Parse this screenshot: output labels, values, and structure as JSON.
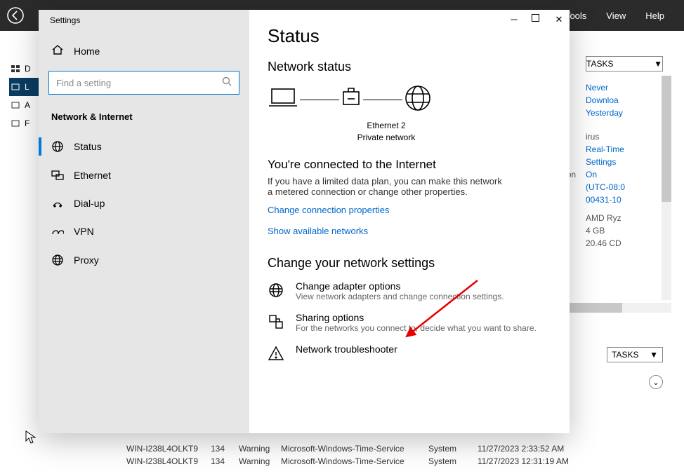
{
  "topbar": {
    "menu": [
      "Tools",
      "View",
      "Help"
    ]
  },
  "bg_left_nav": [
    {
      "label": "D",
      "sel": false
    },
    {
      "label": "L",
      "sel": true
    },
    {
      "label": "A",
      "sel": false
    },
    {
      "label": "F",
      "sel": false
    }
  ],
  "bg_right": {
    "tasks_label": "TASKS",
    "lines": [
      {
        "text": "Never",
        "cls": "bluelink"
      },
      {
        "text": "Downloa",
        "cls": "bluelink"
      },
      {
        "text": "Yesterday",
        "cls": "bluelink"
      },
      {
        "text": "",
        "cls": ""
      },
      {
        "text": "irus",
        "cls": "grayt",
        "pre": true
      },
      {
        "text": "Real-Time",
        "cls": "bluelink"
      },
      {
        "text": "Settings",
        "cls": "bluelink"
      },
      {
        "text": "On",
        "cls": "bluelink",
        "pre_label": "nfiguration"
      },
      {
        "text": "(UTC-08:0",
        "cls": "bluelink"
      },
      {
        "text": "00431-10",
        "cls": "bluelink"
      },
      {
        "text": "",
        "cls": ""
      },
      {
        "text": "",
        "cls": ""
      },
      {
        "text": "AMD Ryz",
        "cls": "grayt"
      },
      {
        "text": "4 GB",
        "cls": "grayt"
      },
      {
        "text": "20.46 CD",
        "cls": "grayt"
      }
    ]
  },
  "tasks2": "TASKS",
  "settings": {
    "title": "Settings",
    "home": "Home",
    "search_placeholder": "Find a setting",
    "category": "Network & Internet",
    "items": [
      {
        "label": "Status",
        "active": true,
        "icon": "status"
      },
      {
        "label": "Ethernet",
        "active": false,
        "icon": "ethernet"
      },
      {
        "label": "Dial-up",
        "active": false,
        "icon": "dialup"
      },
      {
        "label": "VPN",
        "active": false,
        "icon": "vpn"
      },
      {
        "label": "Proxy",
        "active": false,
        "icon": "proxy"
      }
    ],
    "page": {
      "h1": "Status",
      "h2": "Network status",
      "eth_name": "Ethernet 2",
      "eth_sub": "Private network",
      "connected_title": "You're connected to the Internet",
      "connected_body": "If you have a limited data plan, you can make this network a metered connection or change other properties.",
      "link_props": "Change connection properties",
      "link_nets": "Show available networks",
      "change_hdr": "Change your network settings",
      "opts": [
        {
          "t": "Change adapter options",
          "d": "View network adapters and change connection settings.",
          "icon": "globe"
        },
        {
          "t": "Sharing options",
          "d": "For the networks you connect to, decide what you want to share.",
          "icon": "share"
        },
        {
          "t": "Network troubleshooter",
          "d": "",
          "icon": "warn"
        }
      ]
    }
  },
  "logs": [
    {
      "host": "WIN-I238L4OLKT9",
      "id": "134",
      "lvl": "Warning",
      "src": "Microsoft-Windows-Time-Service",
      "cat": "System",
      "time": "11/27/2023 2:33:52 AM"
    },
    {
      "host": "WIN-I238L4OLKT9",
      "id": "134",
      "lvl": "Warning",
      "src": "Microsoft-Windows-Time-Service",
      "cat": "System",
      "time": "11/27/2023 12:31:19 AM"
    }
  ],
  "colors": {
    "accent": "#0078d4",
    "link": "#0066cc"
  }
}
